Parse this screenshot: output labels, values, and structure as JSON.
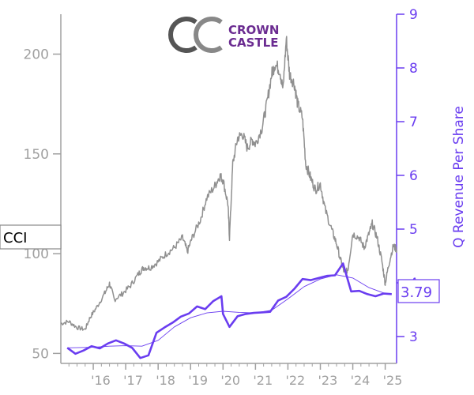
{
  "chart_data": {
    "type": "line",
    "logo": {
      "text_line1": "CROWN",
      "text_line2": "CASTLE",
      "color": "#6b2c91",
      "mark_color": "#555555"
    },
    "ticker_label": "CCI",
    "last_value_label": "3.79",
    "y_left": {
      "ticks": [
        "50",
        "100",
        "150",
        "200"
      ],
      "tick_values": [
        50,
        100,
        150,
        200
      ],
      "range": [
        45,
        220
      ]
    },
    "y_right": {
      "label": "Q Revenue Per Share",
      "ticks": [
        "3",
        "4",
        "5",
        "6",
        "7",
        "8",
        "9"
      ],
      "tick_values": [
        3,
        4,
        5,
        6,
        7,
        8,
        9
      ],
      "range": [
        2.5,
        9
      ]
    },
    "x": {
      "tick_labels": [
        "'16",
        "'17",
        "'18",
        "'19",
        "'20",
        "'21",
        "'22",
        "'23",
        "'24",
        "'25"
      ],
      "range": [
        2015.0,
        2025.35
      ]
    },
    "colors": {
      "price": "#909090",
      "revenue": "#6a3df0",
      "axis_left": "#a0a0a0",
      "axis_right": "#6a3df0"
    },
    "series": [
      {
        "kind": "price",
        "points": [
          [
            2015.0,
            65
          ],
          [
            2015.25,
            66
          ],
          [
            2015.5,
            63
          ],
          [
            2015.75,
            62
          ],
          [
            2015.9,
            68
          ],
          [
            2016.1,
            73
          ],
          [
            2016.35,
            80
          ],
          [
            2016.5,
            85
          ],
          [
            2016.65,
            77
          ],
          [
            2016.9,
            80
          ],
          [
            2017.15,
            84
          ],
          [
            2017.4,
            90
          ],
          [
            2017.55,
            93
          ],
          [
            2017.75,
            93
          ],
          [
            2018.0,
            96
          ],
          [
            2018.25,
            100
          ],
          [
            2018.5,
            103
          ],
          [
            2018.75,
            108
          ],
          [
            2018.9,
            101
          ],
          [
            2019.05,
            108
          ],
          [
            2019.3,
            117
          ],
          [
            2019.5,
            128
          ],
          [
            2019.75,
            134
          ],
          [
            2019.9,
            139
          ],
          [
            2020.0,
            137
          ],
          [
            2020.15,
            125
          ],
          [
            2020.2,
            108
          ],
          [
            2020.3,
            145
          ],
          [
            2020.45,
            158
          ],
          [
            2020.6,
            160
          ],
          [
            2020.75,
            153
          ],
          [
            2020.9,
            157
          ],
          [
            2021.0,
            155
          ],
          [
            2021.2,
            163
          ],
          [
            2021.35,
            175
          ],
          [
            2021.5,
            190
          ],
          [
            2021.6,
            195
          ],
          [
            2021.75,
            192
          ],
          [
            2021.85,
            182
          ],
          [
            2021.95,
            208
          ],
          [
            2022.05,
            190
          ],
          [
            2022.2,
            185
          ],
          [
            2022.3,
            175
          ],
          [
            2022.45,
            168
          ],
          [
            2022.55,
            145
          ],
          [
            2022.7,
            138
          ],
          [
            2022.85,
            132
          ],
          [
            2023.0,
            135
          ],
          [
            2023.15,
            122
          ],
          [
            2023.35,
            112
          ],
          [
            2023.5,
            105
          ],
          [
            2023.65,
            95
          ],
          [
            2023.75,
            90
          ],
          [
            2023.85,
            92
          ],
          [
            2024.0,
            110
          ],
          [
            2024.2,
            108
          ],
          [
            2024.35,
            103
          ],
          [
            2024.5,
            110
          ],
          [
            2024.6,
            115
          ],
          [
            2024.75,
            108
          ],
          [
            2024.9,
            96
          ],
          [
            2025.0,
            85
          ],
          [
            2025.1,
            94
          ],
          [
            2025.25,
            104
          ],
          [
            2025.35,
            102
          ]
        ]
      },
      {
        "kind": "revenue",
        "points": [
          [
            2015.2,
            2.79
          ],
          [
            2015.45,
            2.68
          ],
          [
            2015.7,
            2.74
          ],
          [
            2015.95,
            2.82
          ],
          [
            2016.2,
            2.78
          ],
          [
            2016.45,
            2.87
          ],
          [
            2016.7,
            2.93
          ],
          [
            2016.95,
            2.87
          ],
          [
            2017.2,
            2.79
          ],
          [
            2017.45,
            2.6
          ],
          [
            2017.7,
            2.65
          ],
          [
            2017.95,
            3.07
          ],
          [
            2018.2,
            3.17
          ],
          [
            2018.45,
            3.26
          ],
          [
            2018.7,
            3.37
          ],
          [
            2018.95,
            3.43
          ],
          [
            2019.2,
            3.56
          ],
          [
            2019.45,
            3.51
          ],
          [
            2019.7,
            3.66
          ],
          [
            2019.95,
            3.75
          ],
          [
            2020.0,
            3.42
          ],
          [
            2020.2,
            3.18
          ],
          [
            2020.45,
            3.38
          ],
          [
            2020.7,
            3.42
          ],
          [
            2020.95,
            3.44
          ],
          [
            2021.2,
            3.45
          ],
          [
            2021.45,
            3.46
          ],
          [
            2021.7,
            3.67
          ],
          [
            2021.95,
            3.74
          ],
          [
            2022.2,
            3.89
          ],
          [
            2022.45,
            4.07
          ],
          [
            2022.7,
            4.05
          ],
          [
            2022.95,
            4.09
          ],
          [
            2023.2,
            4.13
          ],
          [
            2023.45,
            4.14
          ],
          [
            2023.7,
            4.36
          ],
          [
            2023.95,
            3.84
          ],
          [
            2024.2,
            3.85
          ],
          [
            2024.45,
            3.79
          ],
          [
            2024.7,
            3.75
          ],
          [
            2024.95,
            3.8
          ],
          [
            2025.2,
            3.79
          ]
        ]
      },
      {
        "kind": "revenue_trend",
        "points": [
          [
            2015.2,
            2.79
          ],
          [
            2016.0,
            2.8
          ],
          [
            2016.5,
            2.82
          ],
          [
            2017.0,
            2.83
          ],
          [
            2017.5,
            2.82
          ],
          [
            2018.0,
            2.93
          ],
          [
            2018.5,
            3.18
          ],
          [
            2019.0,
            3.35
          ],
          [
            2019.5,
            3.44
          ],
          [
            2020.0,
            3.47
          ],
          [
            2020.5,
            3.45
          ],
          [
            2021.0,
            3.44
          ],
          [
            2021.5,
            3.49
          ],
          [
            2022.0,
            3.7
          ],
          [
            2022.5,
            3.93
          ],
          [
            2023.0,
            4.07
          ],
          [
            2023.5,
            4.15
          ],
          [
            2024.0,
            4.09
          ],
          [
            2024.5,
            3.91
          ],
          [
            2025.0,
            3.8
          ],
          [
            2025.2,
            3.79
          ]
        ]
      }
    ]
  }
}
